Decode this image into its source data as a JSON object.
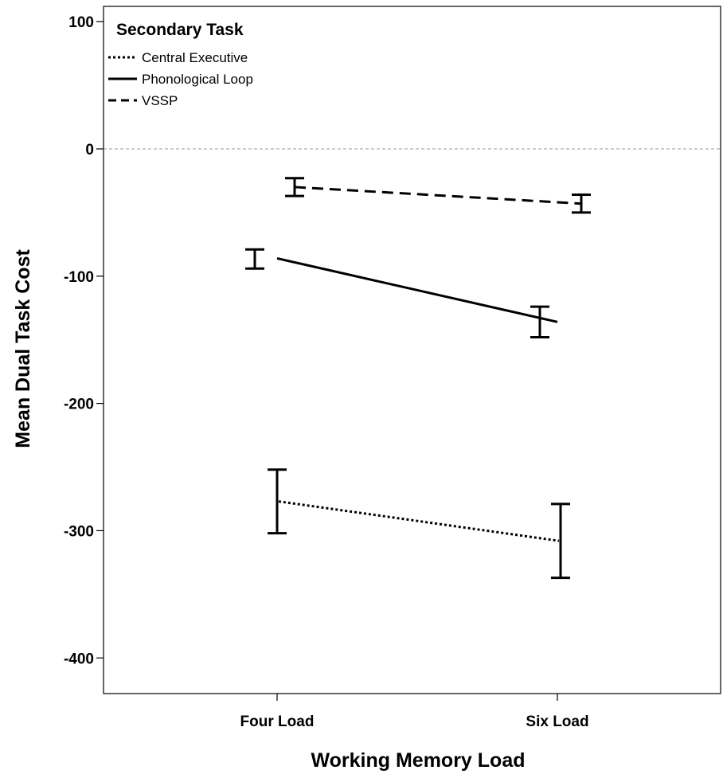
{
  "chart_data": {
    "type": "line",
    "title": "",
    "xlabel": "Working Memory Load",
    "ylabel": "Mean Dual Task Cost",
    "categories": [
      "Four Load",
      "Six Load"
    ],
    "ylim": [
      -428,
      112
    ],
    "yticks": [
      100,
      0,
      -100,
      -200,
      -300,
      -400
    ],
    "reference_line": 0,
    "grid": false,
    "legend": {
      "title": "Secondary Task",
      "position": "top-left"
    },
    "series": [
      {
        "name": "Central Executive",
        "style": "dotted",
        "values": [
          -277,
          -308
        ],
        "error_bars": [
          [
            -302,
            -252
          ],
          [
            -337,
            -279
          ]
        ]
      },
      {
        "name": "Phonological Loop",
        "style": "solid",
        "values": [
          -86,
          -136
        ],
        "error_bars": [
          [
            -94,
            -79
          ],
          [
            -148,
            -124
          ]
        ]
      },
      {
        "name": "VSSP",
        "style": "dashed",
        "values": [
          -30,
          -43
        ],
        "error_bars": [
          [
            -37,
            -23
          ],
          [
            -50,
            -36
          ]
        ]
      }
    ]
  }
}
